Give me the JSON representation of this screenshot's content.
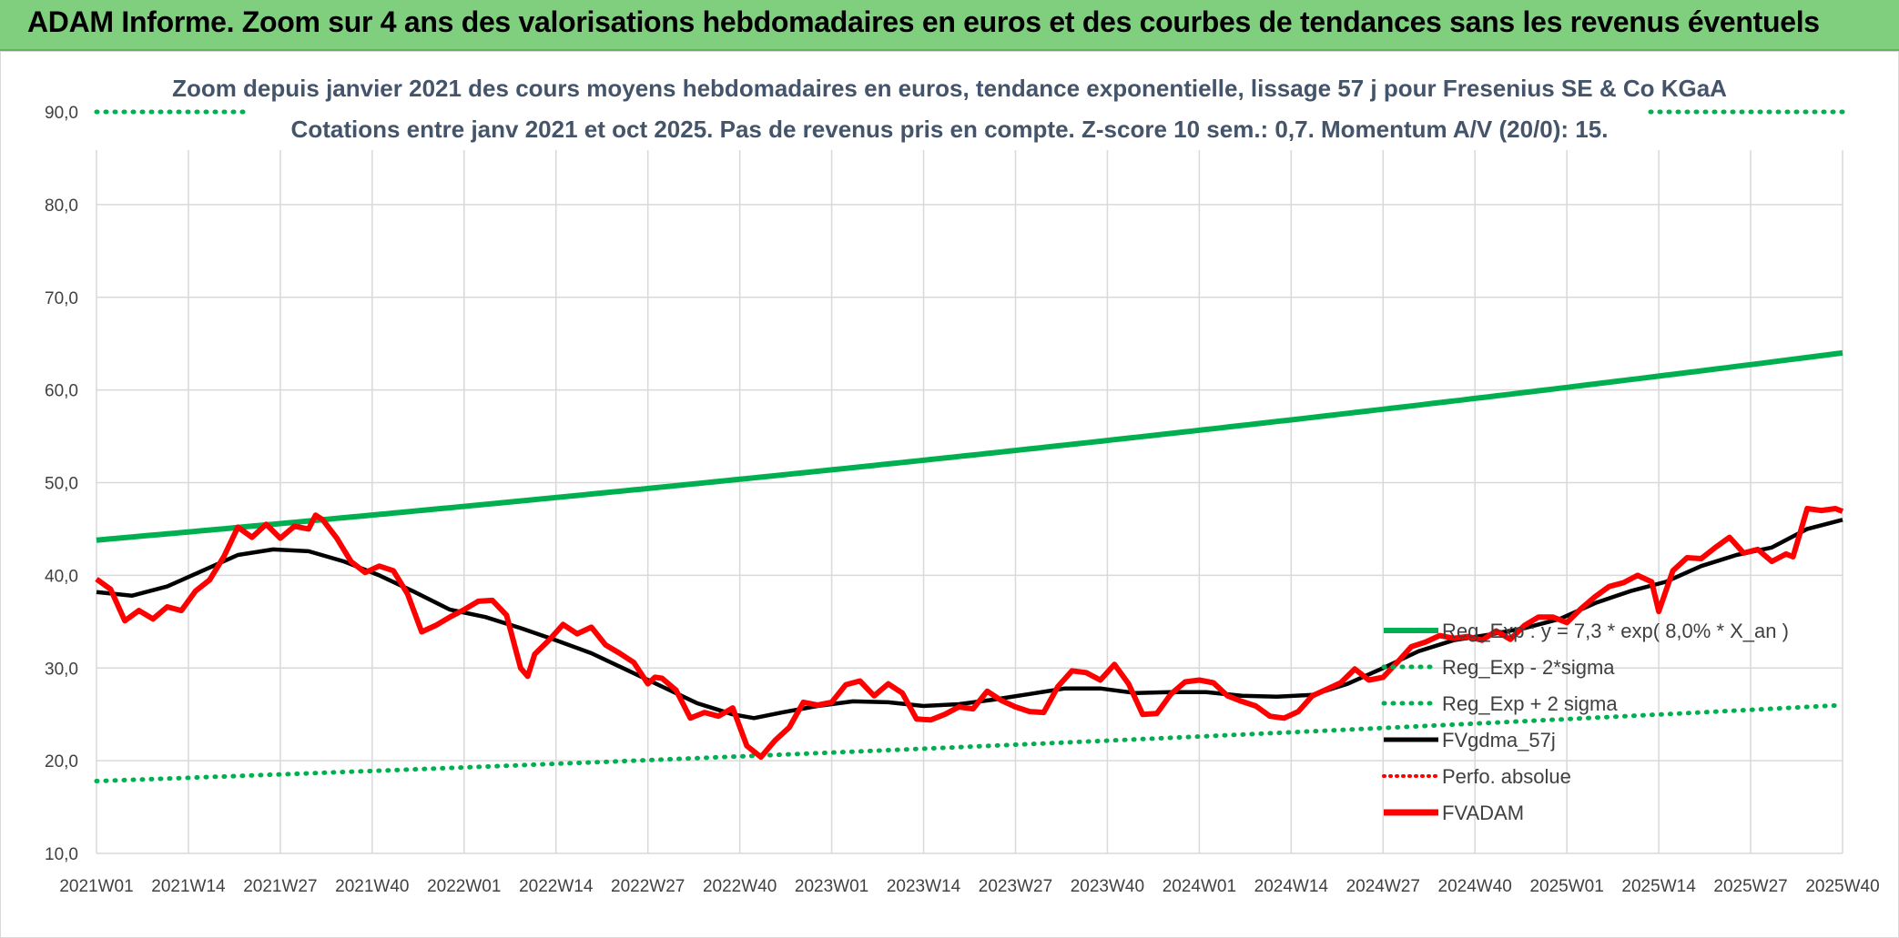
{
  "banner": {
    "title": "ADAM Informe. Zoom sur 4 ans des valorisations hebdomadaires en euros et des courbes de tendances sans les revenus éventuels"
  },
  "colors": {
    "banner_bg": "#7fcf7f",
    "reg_exp": "#00b050",
    "fvgdma": "#000000",
    "fvadam": "#ff0000",
    "perfo": "#ff0000",
    "grid": "#d9d9d9",
    "text": "#44546a"
  },
  "chart_data": {
    "type": "line",
    "title": "Zoom depuis janvier 2021 des cours moyens hebdomadaires en euros, tendance exponentielle, lissage 57 j pour Fresenius SE & Co KGaA",
    "subtitle": "Cotations entre janv 2021 et oct 2025. Pas de revenus pris en compte. Z-score 10 sem.: 0,7. Momentum A/V (20/0): 15.",
    "xlabel": "",
    "ylabel": "",
    "ylim": [
      10,
      90
    ],
    "yticks": [
      "10,0",
      "20,0",
      "30,0",
      "40,0",
      "50,0",
      "60,0",
      "70,0",
      "80,0",
      "90,0"
    ],
    "x_tick_labels": [
      "2021W01",
      "2021W14",
      "2021W27",
      "2021W40",
      "2022W01",
      "2022W14",
      "2022W27",
      "2022W40",
      "2023W01",
      "2023W14",
      "2023W27",
      "2023W40",
      "2024W01",
      "2024W14",
      "2024W27",
      "2024W40",
      "2025W01",
      "2025W14",
      "2025W27",
      "2025W40"
    ],
    "x_tick_index": [
      0,
      13,
      26,
      39,
      52,
      65,
      78,
      91,
      104,
      117,
      130,
      143,
      156,
      169,
      182,
      195,
      208,
      221,
      234,
      247
    ],
    "legend": {
      "position": "right",
      "entries": [
        "Reg_Exp : y = 7,3 * exp( 8,0% *  X_an )",
        "Reg_Exp - 2*sigma",
        "Reg_Exp + 2 sigma",
        "FVgdma_57j",
        "Perfo. absolue",
        "FVADAM"
      ]
    },
    "series": [
      {
        "name": "Reg_Exp : y = 7,3 * exp( 8,0% *  X_an )",
        "style": "solid-green",
        "start": 43.8,
        "end": 64.0
      },
      {
        "name": "Reg_Exp - 2*sigma",
        "style": "dotted-green",
        "start": 17.8,
        "end": 26.0
      },
      {
        "name": "Reg_Exp + 2 sigma",
        "style": "dotted-green",
        "constant": 90.0,
        "note": "upper band clipped at 90"
      },
      {
        "name": "FVgdma_57j",
        "style": "solid-black",
        "points": [
          [
            0,
            38.2
          ],
          [
            5,
            37.8
          ],
          [
            10,
            38.8
          ],
          [
            15,
            40.5
          ],
          [
            20,
            42.2
          ],
          [
            25,
            42.8
          ],
          [
            30,
            42.6
          ],
          [
            35,
            41.5
          ],
          [
            40,
            40.0
          ],
          [
            45,
            38.2
          ],
          [
            50,
            36.3
          ],
          [
            55,
            35.5
          ],
          [
            60,
            34.3
          ],
          [
            65,
            33.0
          ],
          [
            70,
            31.6
          ],
          [
            75,
            29.8
          ],
          [
            80,
            28.0
          ],
          [
            85,
            26.2
          ],
          [
            90,
            25.0
          ],
          [
            93,
            24.6
          ],
          [
            97,
            25.2
          ],
          [
            102,
            25.9
          ],
          [
            107,
            26.4
          ],
          [
            112,
            26.3
          ],
          [
            117,
            25.9
          ],
          [
            122,
            26.1
          ],
          [
            127,
            26.6
          ],
          [
            132,
            27.2
          ],
          [
            137,
            27.8
          ],
          [
            142,
            27.8
          ],
          [
            147,
            27.3
          ],
          [
            152,
            27.4
          ],
          [
            157,
            27.4
          ],
          [
            162,
            27.0
          ],
          [
            167,
            26.9
          ],
          [
            172,
            27.1
          ],
          [
            177,
            28.3
          ],
          [
            182,
            30.0
          ],
          [
            187,
            31.8
          ],
          [
            192,
            33.0
          ],
          [
            197,
            33.6
          ],
          [
            202,
            34.3
          ],
          [
            207,
            35.3
          ],
          [
            212,
            37.0
          ],
          [
            217,
            38.3
          ],
          [
            222,
            39.3
          ],
          [
            227,
            41.0
          ],
          [
            232,
            42.2
          ],
          [
            237,
            43.0
          ],
          [
            242,
            45.0
          ],
          [
            247,
            46.0
          ]
        ]
      },
      {
        "name": "FVADAM",
        "style": "solid-red",
        "points": [
          [
            0,
            39.6
          ],
          [
            2,
            38.5
          ],
          [
            4,
            35.1
          ],
          [
            6,
            36.2
          ],
          [
            8,
            35.3
          ],
          [
            10,
            36.6
          ],
          [
            12,
            36.2
          ],
          [
            14,
            38.3
          ],
          [
            16,
            39.5
          ],
          [
            18,
            42.0
          ],
          [
            20,
            45.2
          ],
          [
            22,
            44.1
          ],
          [
            24,
            45.5
          ],
          [
            26,
            44.0
          ],
          [
            28,
            45.3
          ],
          [
            30,
            45.0
          ],
          [
            31,
            46.5
          ],
          [
            32,
            46.0
          ],
          [
            34,
            44.0
          ],
          [
            36,
            41.5
          ],
          [
            38,
            40.3
          ],
          [
            40,
            41.0
          ],
          [
            42,
            40.5
          ],
          [
            44,
            38.0
          ],
          [
            46,
            33.9
          ],
          [
            48,
            34.6
          ],
          [
            50,
            35.5
          ],
          [
            52,
            36.3
          ],
          [
            54,
            37.2
          ],
          [
            56,
            37.3
          ],
          [
            58,
            35.7
          ],
          [
            60,
            30.0
          ],
          [
            61,
            29.1
          ],
          [
            62,
            31.5
          ],
          [
            64,
            33.0
          ],
          [
            66,
            34.7
          ],
          [
            68,
            33.7
          ],
          [
            70,
            34.4
          ],
          [
            72,
            32.5
          ],
          [
            74,
            31.6
          ],
          [
            76,
            30.6
          ],
          [
            78,
            28.3
          ],
          [
            79,
            29.0
          ],
          [
            80,
            28.9
          ],
          [
            82,
            27.6
          ],
          [
            84,
            24.6
          ],
          [
            86,
            25.2
          ],
          [
            88,
            24.8
          ],
          [
            90,
            25.7
          ],
          [
            92,
            21.6
          ],
          [
            94,
            20.4
          ],
          [
            96,
            22.2
          ],
          [
            98,
            23.6
          ],
          [
            100,
            26.3
          ],
          [
            102,
            26.0
          ],
          [
            104,
            26.3
          ],
          [
            106,
            28.2
          ],
          [
            108,
            28.6
          ],
          [
            110,
            27.0
          ],
          [
            112,
            28.3
          ],
          [
            114,
            27.3
          ],
          [
            116,
            24.5
          ],
          [
            118,
            24.4
          ],
          [
            120,
            25.0
          ],
          [
            122,
            25.8
          ],
          [
            124,
            25.6
          ],
          [
            126,
            27.5
          ],
          [
            128,
            26.5
          ],
          [
            130,
            25.8
          ],
          [
            132,
            25.3
          ],
          [
            134,
            25.2
          ],
          [
            136,
            28.0
          ],
          [
            138,
            29.7
          ],
          [
            140,
            29.5
          ],
          [
            142,
            28.7
          ],
          [
            144,
            30.4
          ],
          [
            146,
            28.3
          ],
          [
            148,
            25.0
          ],
          [
            150,
            25.1
          ],
          [
            152,
            27.2
          ],
          [
            154,
            28.5
          ],
          [
            156,
            28.7
          ],
          [
            158,
            28.4
          ],
          [
            160,
            27.0
          ],
          [
            162,
            26.4
          ],
          [
            164,
            25.9
          ],
          [
            166,
            24.8
          ],
          [
            168,
            24.6
          ],
          [
            170,
            25.3
          ],
          [
            172,
            27.0
          ],
          [
            174,
            27.7
          ],
          [
            176,
            28.4
          ],
          [
            178,
            29.9
          ],
          [
            180,
            28.7
          ],
          [
            182,
            29.0
          ],
          [
            184,
            30.6
          ],
          [
            186,
            32.3
          ],
          [
            188,
            32.8
          ],
          [
            190,
            33.5
          ],
          [
            192,
            33.2
          ],
          [
            194,
            33.4
          ],
          [
            196,
            33.0
          ],
          [
            198,
            34.0
          ],
          [
            200,
            33.1
          ],
          [
            202,
            34.6
          ],
          [
            204,
            35.5
          ],
          [
            206,
            35.5
          ],
          [
            208,
            34.9
          ],
          [
            210,
            36.4
          ],
          [
            212,
            37.7
          ],
          [
            214,
            38.8
          ],
          [
            216,
            39.2
          ],
          [
            218,
            40.0
          ],
          [
            220,
            39.3
          ],
          [
            221,
            36.1
          ],
          [
            223,
            40.5
          ],
          [
            225,
            41.9
          ],
          [
            227,
            41.8
          ],
          [
            229,
            43.0
          ],
          [
            231,
            44.1
          ],
          [
            233,
            42.4
          ],
          [
            235,
            42.8
          ],
          [
            237,
            41.5
          ],
          [
            239,
            42.3
          ],
          [
            240,
            42.0
          ],
          [
            242,
            47.2
          ],
          [
            244,
            47.0
          ],
          [
            246,
            47.2
          ],
          [
            247,
            46.9
          ]
        ]
      },
      {
        "name": "Perfo. absolue",
        "style": "dotted-red",
        "points": []
      }
    ]
  }
}
